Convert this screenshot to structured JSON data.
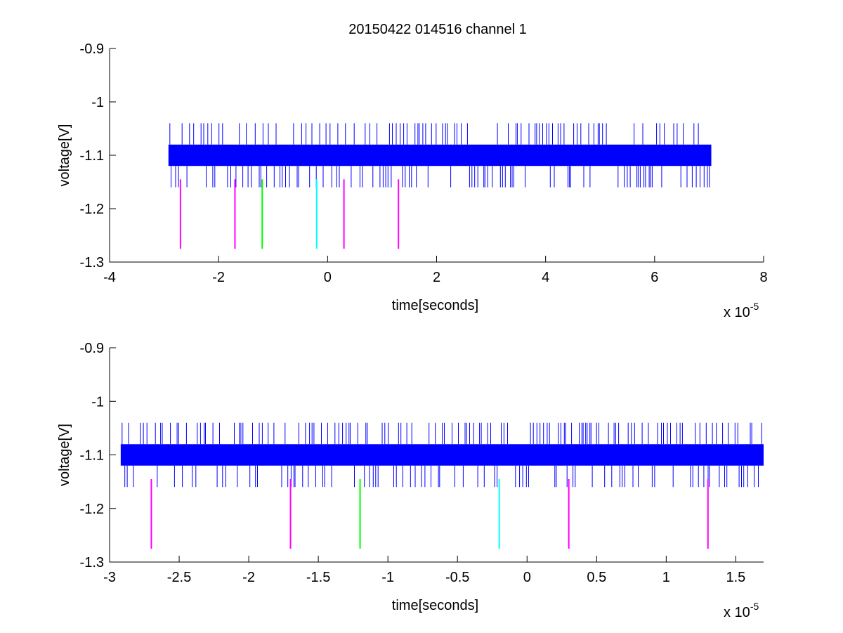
{
  "figure": {
    "title": "20150422 014516 channel 1"
  },
  "chart_data": [
    {
      "type": "line",
      "title": "20150422 014516 channel 1",
      "xlabel": "time[seconds]",
      "ylabel": "voltage[V]",
      "x_exponent_label": "x 10",
      "x_exponent": "-5",
      "xlim": [
        -4,
        8
      ],
      "ylim": [
        -1.3,
        -0.9
      ],
      "xticks": [
        -4,
        -2,
        0,
        2,
        4,
        6,
        8
      ],
      "xtick_labels": [
        "-4",
        "-2",
        "0",
        "2",
        "4",
        "6",
        "8"
      ],
      "yticks": [
        -0.9,
        -1,
        -1.1,
        -1.2,
        -1.3
      ],
      "ytick_labels": [
        "-0.9",
        "-1",
        "-1.1",
        "-1.2",
        "-1.3"
      ],
      "grid": false,
      "signal": {
        "name": "voltage",
        "color": "#0000ff",
        "x_range": [
          -2.92,
          7.04
        ],
        "band": [
          -1.12,
          -1.08
        ],
        "spike_levels": [
          -1.16,
          -1.04
        ]
      },
      "markers": [
        {
          "x": -2.7,
          "color": "#ff00ff",
          "y_top": -1.145,
          "y_bottom": -1.275
        },
        {
          "x": -1.7,
          "color": "#ff00ff",
          "y_top": -1.145,
          "y_bottom": -1.275
        },
        {
          "x": -1.2,
          "color": "#00ff00",
          "y_top": -1.145,
          "y_bottom": -1.275
        },
        {
          "x": -0.2,
          "color": "#00ffff",
          "y_top": -1.145,
          "y_bottom": -1.275
        },
        {
          "x": 0.3,
          "color": "#ff00ff",
          "y_top": -1.145,
          "y_bottom": -1.275
        },
        {
          "x": 1.3,
          "color": "#ff00ff",
          "y_top": -1.145,
          "y_bottom": -1.275
        }
      ]
    },
    {
      "type": "line",
      "title": "",
      "xlabel": "time[seconds]",
      "ylabel": "voltage[V]",
      "x_exponent_label": "x 10",
      "x_exponent": "-5",
      "xlim": [
        -3.0,
        1.7
      ],
      "ylim": [
        -1.3,
        -0.9
      ],
      "xticks": [
        -3,
        -2.5,
        -2,
        -1.5,
        -1,
        -0.5,
        0,
        0.5,
        1,
        1.5
      ],
      "xtick_labels": [
        "-3",
        "-2.5",
        "-2",
        "-1.5",
        "-1",
        "-0.5",
        "0",
        "0.5",
        "1",
        "1.5"
      ],
      "yticks": [
        -0.9,
        -1,
        -1.1,
        -1.2,
        -1.3
      ],
      "ytick_labels": [
        "-0.9",
        "-1",
        "-1.1",
        "-1.2",
        "-1.3"
      ],
      "grid": false,
      "signal": {
        "name": "voltage",
        "color": "#0000ff",
        "x_range": [
          -2.92,
          1.7
        ],
        "band": [
          -1.12,
          -1.08
        ],
        "spike_levels": [
          -1.16,
          -1.04
        ]
      },
      "markers": [
        {
          "x": -2.7,
          "color": "#ff00ff",
          "y_top": -1.145,
          "y_bottom": -1.275
        },
        {
          "x": -1.7,
          "color": "#ff00ff",
          "y_top": -1.145,
          "y_bottom": -1.275
        },
        {
          "x": -1.2,
          "color": "#00ff00",
          "y_top": -1.145,
          "y_bottom": -1.275
        },
        {
          "x": -0.2,
          "color": "#00ffff",
          "y_top": -1.145,
          "y_bottom": -1.275
        },
        {
          "x": 0.3,
          "color": "#ff00ff",
          "y_top": -1.145,
          "y_bottom": -1.275
        },
        {
          "x": 1.3,
          "color": "#ff00ff",
          "y_top": -1.145,
          "y_bottom": -1.275
        }
      ]
    }
  ]
}
